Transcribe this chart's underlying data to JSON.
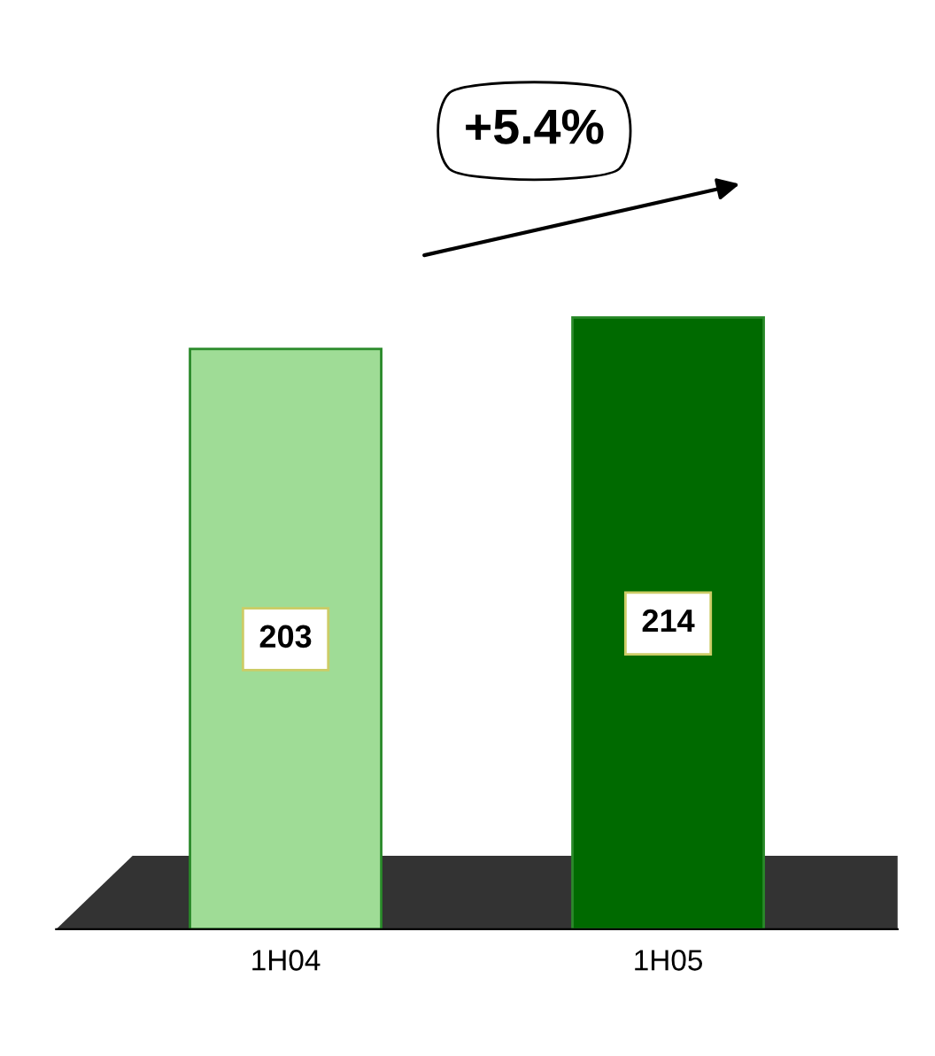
{
  "chart_data": {
    "type": "bar",
    "categories": [
      "1H04",
      "1H05"
    ],
    "values": [
      203,
      214
    ],
    "colors": [
      "#9fdc96",
      "#006a00"
    ],
    "data_labels": true,
    "grid": false,
    "annotations": [
      "+5.4%"
    ]
  }
}
